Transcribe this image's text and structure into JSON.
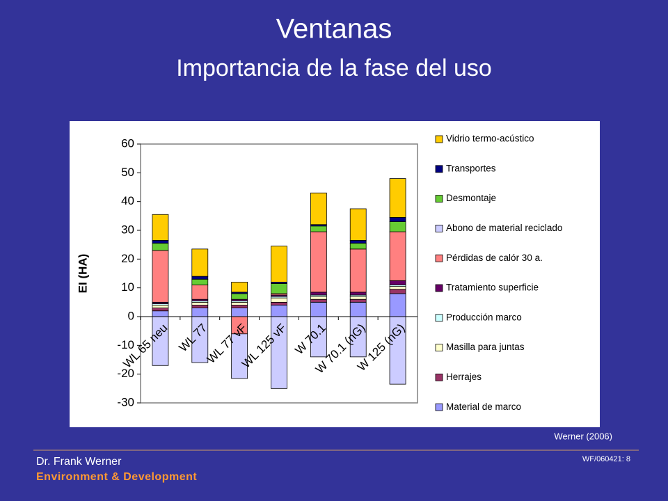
{
  "header": {
    "title": "Ventanas",
    "subtitle": "Importancia de la fase del uso"
  },
  "chart_data": {
    "type": "stacked-bar",
    "y_label": "EI (HA)",
    "categories": [
      "WL 65 neu",
      "WL 77",
      "WL 77 vF",
      "WL 125 vF",
      "W 70.1",
      "W 70.1 (nG)",
      "W 125 (nG)"
    ],
    "ylim": [
      -30,
      60
    ],
    "yticks": [
      -30,
      -20,
      -10,
      0,
      10,
      20,
      30,
      40,
      50,
      60
    ],
    "grid": false,
    "legend": "right",
    "series": [
      {
        "name": "Material de marco",
        "color": "#9999ff",
        "values": [
          2,
          3,
          3,
          4,
          5,
          5,
          8
        ]
      },
      {
        "name": "Herrajes",
        "color": "#993366",
        "values": [
          1,
          1,
          1,
          1,
          1,
          1,
          1.5
        ]
      },
      {
        "name": "Masilla para juntas",
        "color": "#ffffcc",
        "values": [
          1,
          1,
          1,
          1.5,
          1,
          1,
          1
        ]
      },
      {
        "name": "Producción marco",
        "color": "#ccffff",
        "values": [
          0.5,
          0.5,
          0.5,
          0.5,
          0.5,
          0.5,
          0.5
        ]
      },
      {
        "name": "Tratamiento superficie",
        "color": "#660066",
        "values": [
          0.5,
          0.5,
          0.5,
          0.5,
          1,
          1,
          1.5
        ]
      },
      {
        "name": "Pérdidas de calór 30 a.",
        "color": "#ff8080",
        "values": [
          18,
          5,
          -6,
          0.5,
          21,
          15,
          17
        ]
      },
      {
        "name": "Abono de material reciclado",
        "color": "#ccccff",
        "values": [
          -17,
          -16,
          -15.5,
          -25,
          -14,
          -14,
          -23.5
        ]
      },
      {
        "name": "Desmontaje",
        "color": "#66cc33",
        "values": [
          2.5,
          2,
          2,
          3.5,
          2,
          2,
          3.5
        ]
      },
      {
        "name": "Transportes",
        "color": "#000080",
        "values": [
          1,
          1,
          0.5,
          0.5,
          0.5,
          1,
          1.5
        ]
      },
      {
        "name": "Vidrio termo-acústico",
        "color": "#ffcc00",
        "values": [
          9,
          9.5,
          3.5,
          12.5,
          11,
          11,
          13.5
        ]
      }
    ],
    "source": "Werner (2006)"
  },
  "footer": {
    "author": "Dr. Frank Werner",
    "department": "Environment & Development",
    "slide_id": "WF/060421: 8"
  }
}
